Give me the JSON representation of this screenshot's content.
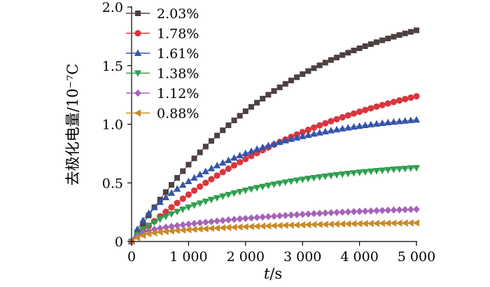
{
  "chart_data": {
    "type": "scatter",
    "title": "",
    "ylabel": "去极化电量/10⁻⁷C",
    "xlabel": "t/s",
    "xlabel_var": "t",
    "xlabel_unit": "/s",
    "xlim": [
      0,
      5000
    ],
    "ylim": [
      0,
      2.0
    ],
    "x_ticks": [
      0,
      1000,
      2000,
      3000,
      4000,
      5000
    ],
    "x_tick_labels": [
      "0",
      "1 000",
      "2 000",
      "3 000",
      "4 000",
      "5 000"
    ],
    "y_ticks": [
      0,
      0.5,
      1.0,
      1.5,
      2.0
    ],
    "y_tick_labels": [
      "0",
      "0.5",
      "1.0",
      "1.5",
      "2.0"
    ],
    "grid": false,
    "legend_position": "top-left",
    "x_sample_step": 100,
    "series": [
      {
        "name": "2.03%",
        "color": "#4d4040",
        "marker": "square",
        "a": 2.15,
        "tau": 2750
      },
      {
        "name": "1.78%",
        "color": "#d9363e",
        "marker": "circle",
        "a": 1.65,
        "tau": 3600
      },
      {
        "name": "1.61%",
        "color": "#3454a8",
        "marker": "triangle-up",
        "a": 1.0,
        "tau": 2000,
        "b": 0.12
      },
      {
        "name": "1.38%",
        "color": "#2f9e50",
        "marker": "triangle-down",
        "a": 0.63,
        "tau": 2300,
        "b": 0.07
      },
      {
        "name": "1.12%",
        "color": "#a564b8",
        "marker": "diamond",
        "a": 0.24,
        "tau": 3000,
        "b": 0.08,
        "r": 0.22
      },
      {
        "name": "0.88%",
        "color": "#c98a2a",
        "marker": "triangle-left",
        "a": 0.11,
        "tau": 2200,
        "b": 0.06,
        "r": 0.35
      }
    ]
  }
}
